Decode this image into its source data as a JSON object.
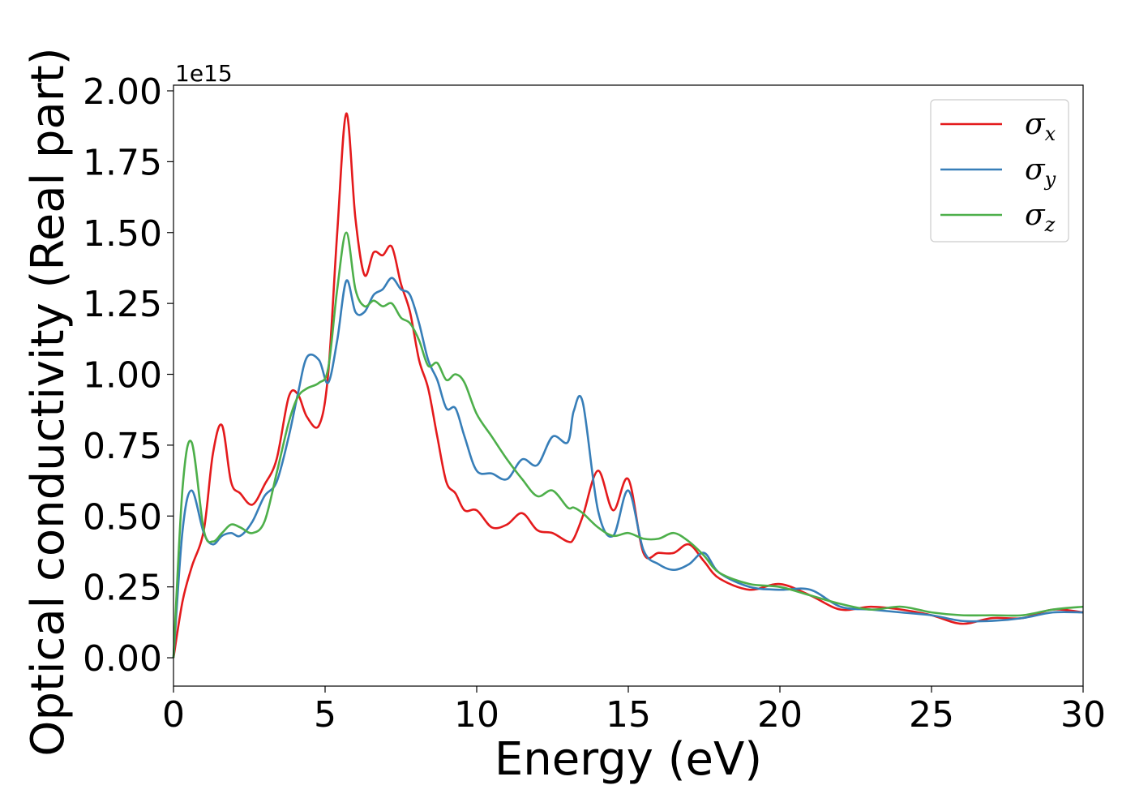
{
  "chart_data": {
    "type": "line",
    "title": "",
    "xlabel": "Energy (eV)",
    "ylabel": "Optical conductivity (Real part)",
    "y_offset_label": "1e15",
    "xlim": [
      0,
      30
    ],
    "ylim": [
      -0.1,
      2.02
    ],
    "xticks": [
      0,
      5,
      10,
      15,
      20,
      25,
      30
    ],
    "xtick_labels": [
      "0",
      "5",
      "10",
      "15",
      "20",
      "25",
      "30"
    ],
    "yticks": [
      0,
      0.25,
      0.5,
      0.75,
      1.0,
      1.25,
      1.5,
      1.75,
      2.0
    ],
    "ytick_labels": [
      "0.00",
      "0.25",
      "0.50",
      "0.75",
      "1.00",
      "1.25",
      "1.50",
      "1.75",
      "2.00"
    ],
    "grid": false,
    "legend_position": "top-right",
    "x": [
      0,
      0.3,
      0.6,
      1.0,
      1.3,
      1.6,
      1.9,
      2.2,
      2.6,
      3.0,
      3.4,
      3.8,
      4.1,
      4.4,
      4.8,
      5.1,
      5.4,
      5.7,
      6.0,
      6.3,
      6.6,
      6.9,
      7.2,
      7.5,
      7.8,
      8.1,
      8.4,
      8.7,
      9.0,
      9.3,
      9.6,
      10.0,
      10.5,
      11.0,
      11.5,
      12.0,
      12.5,
      13.0,
      13.2,
      13.5,
      14.0,
      14.5,
      15.0,
      15.5,
      16.0,
      16.5,
      17.0,
      17.5,
      18.0,
      19.0,
      20.0,
      21.0,
      22.0,
      23.0,
      24.0,
      25.0,
      26.0,
      27.0,
      28.0,
      29.0,
      30.0
    ],
    "series": [
      {
        "name": "σx",
        "color": "#e41a1c",
        "values": [
          0.0,
          0.2,
          0.32,
          0.45,
          0.72,
          0.82,
          0.62,
          0.58,
          0.54,
          0.61,
          0.7,
          0.92,
          0.93,
          0.85,
          0.82,
          1.0,
          1.5,
          1.92,
          1.55,
          1.35,
          1.43,
          1.42,
          1.45,
          1.32,
          1.22,
          1.05,
          0.95,
          0.78,
          0.62,
          0.58,
          0.52,
          0.52,
          0.46,
          0.47,
          0.51,
          0.45,
          0.44,
          0.41,
          0.42,
          0.5,
          0.66,
          0.52,
          0.63,
          0.37,
          0.37,
          0.37,
          0.4,
          0.34,
          0.28,
          0.24,
          0.26,
          0.22,
          0.17,
          0.18,
          0.17,
          0.15,
          0.12,
          0.14,
          0.14,
          0.17,
          0.16
        ]
      },
      {
        "name": "σy",
        "color": "#377eb8",
        "values": [
          0.0,
          0.45,
          0.59,
          0.44,
          0.4,
          0.43,
          0.44,
          0.43,
          0.48,
          0.57,
          0.62,
          0.78,
          0.93,
          1.06,
          1.05,
          0.97,
          1.12,
          1.33,
          1.22,
          1.22,
          1.28,
          1.3,
          1.34,
          1.3,
          1.28,
          1.18,
          1.05,
          0.98,
          0.88,
          0.88,
          0.78,
          0.66,
          0.65,
          0.63,
          0.7,
          0.68,
          0.78,
          0.76,
          0.87,
          0.9,
          0.52,
          0.43,
          0.59,
          0.38,
          0.33,
          0.31,
          0.33,
          0.37,
          0.3,
          0.25,
          0.24,
          0.24,
          0.18,
          0.17,
          0.16,
          0.15,
          0.13,
          0.13,
          0.14,
          0.16,
          0.16
        ]
      },
      {
        "name": "σz",
        "color": "#4daf4a",
        "values": [
          0.0,
          0.6,
          0.76,
          0.45,
          0.41,
          0.44,
          0.47,
          0.46,
          0.44,
          0.48,
          0.65,
          0.83,
          0.92,
          0.95,
          0.97,
          1.02,
          1.3,
          1.5,
          1.3,
          1.24,
          1.26,
          1.24,
          1.25,
          1.2,
          1.18,
          1.12,
          1.03,
          1.04,
          0.98,
          1.0,
          0.97,
          0.86,
          0.78,
          0.7,
          0.63,
          0.57,
          0.59,
          0.53,
          0.53,
          0.51,
          0.46,
          0.43,
          0.44,
          0.42,
          0.42,
          0.44,
          0.41,
          0.36,
          0.3,
          0.26,
          0.25,
          0.22,
          0.19,
          0.17,
          0.18,
          0.16,
          0.15,
          0.15,
          0.15,
          0.17,
          0.18
        ]
      }
    ]
  }
}
